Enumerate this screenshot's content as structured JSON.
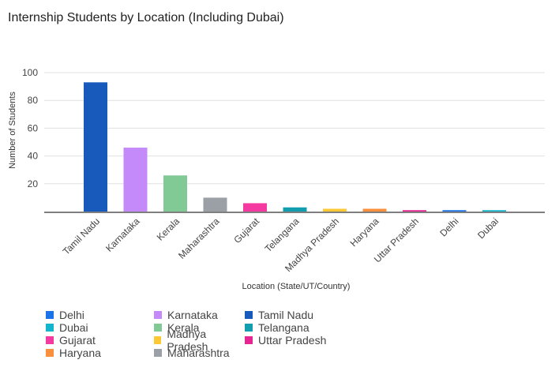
{
  "chart_data": {
    "type": "bar",
    "title": "Internship Students by Location (Including Dubai)",
    "xlabel": "Location (State/UT/Country)",
    "ylabel": "Number of Students",
    "ylim": [
      0,
      100
    ],
    "yticks": [
      20,
      40,
      60,
      80,
      100
    ],
    "grid": true,
    "legend_position": "bottom",
    "categories": [
      "Tamil Nadu",
      "Karnataka",
      "Kerala",
      "Maharashtra",
      "Gujarat",
      "Telangana",
      "Madhya Pradesh",
      "Haryana",
      "Uttar Pradesh",
      "Delhi",
      "Dubai"
    ],
    "values": [
      93,
      46,
      26,
      10,
      6,
      3,
      2,
      2,
      1,
      1,
      1
    ],
    "colors": [
      "#185abc",
      "#c58af9",
      "#81c995",
      "#9aa0a6",
      "#f439a0",
      "#129eaf",
      "#fcc934",
      "#fa903e",
      "#e52592",
      "#1a73e8",
      "#12b5cb"
    ],
    "legend": [
      "Delhi",
      "Dubai",
      "Gujarat",
      "Haryana",
      "Karnataka",
      "Kerala",
      "Madhya Pradesh",
      "Maharashtra",
      "Tamil Nadu",
      "Telangana",
      "Uttar Pradesh"
    ],
    "legend_colors": [
      "#1a73e8",
      "#12b5cb",
      "#f439a0",
      "#fa903e",
      "#c58af9",
      "#81c995",
      "#fcc934",
      "#9aa0a6",
      "#185abc",
      "#129eaf",
      "#e52592"
    ]
  }
}
